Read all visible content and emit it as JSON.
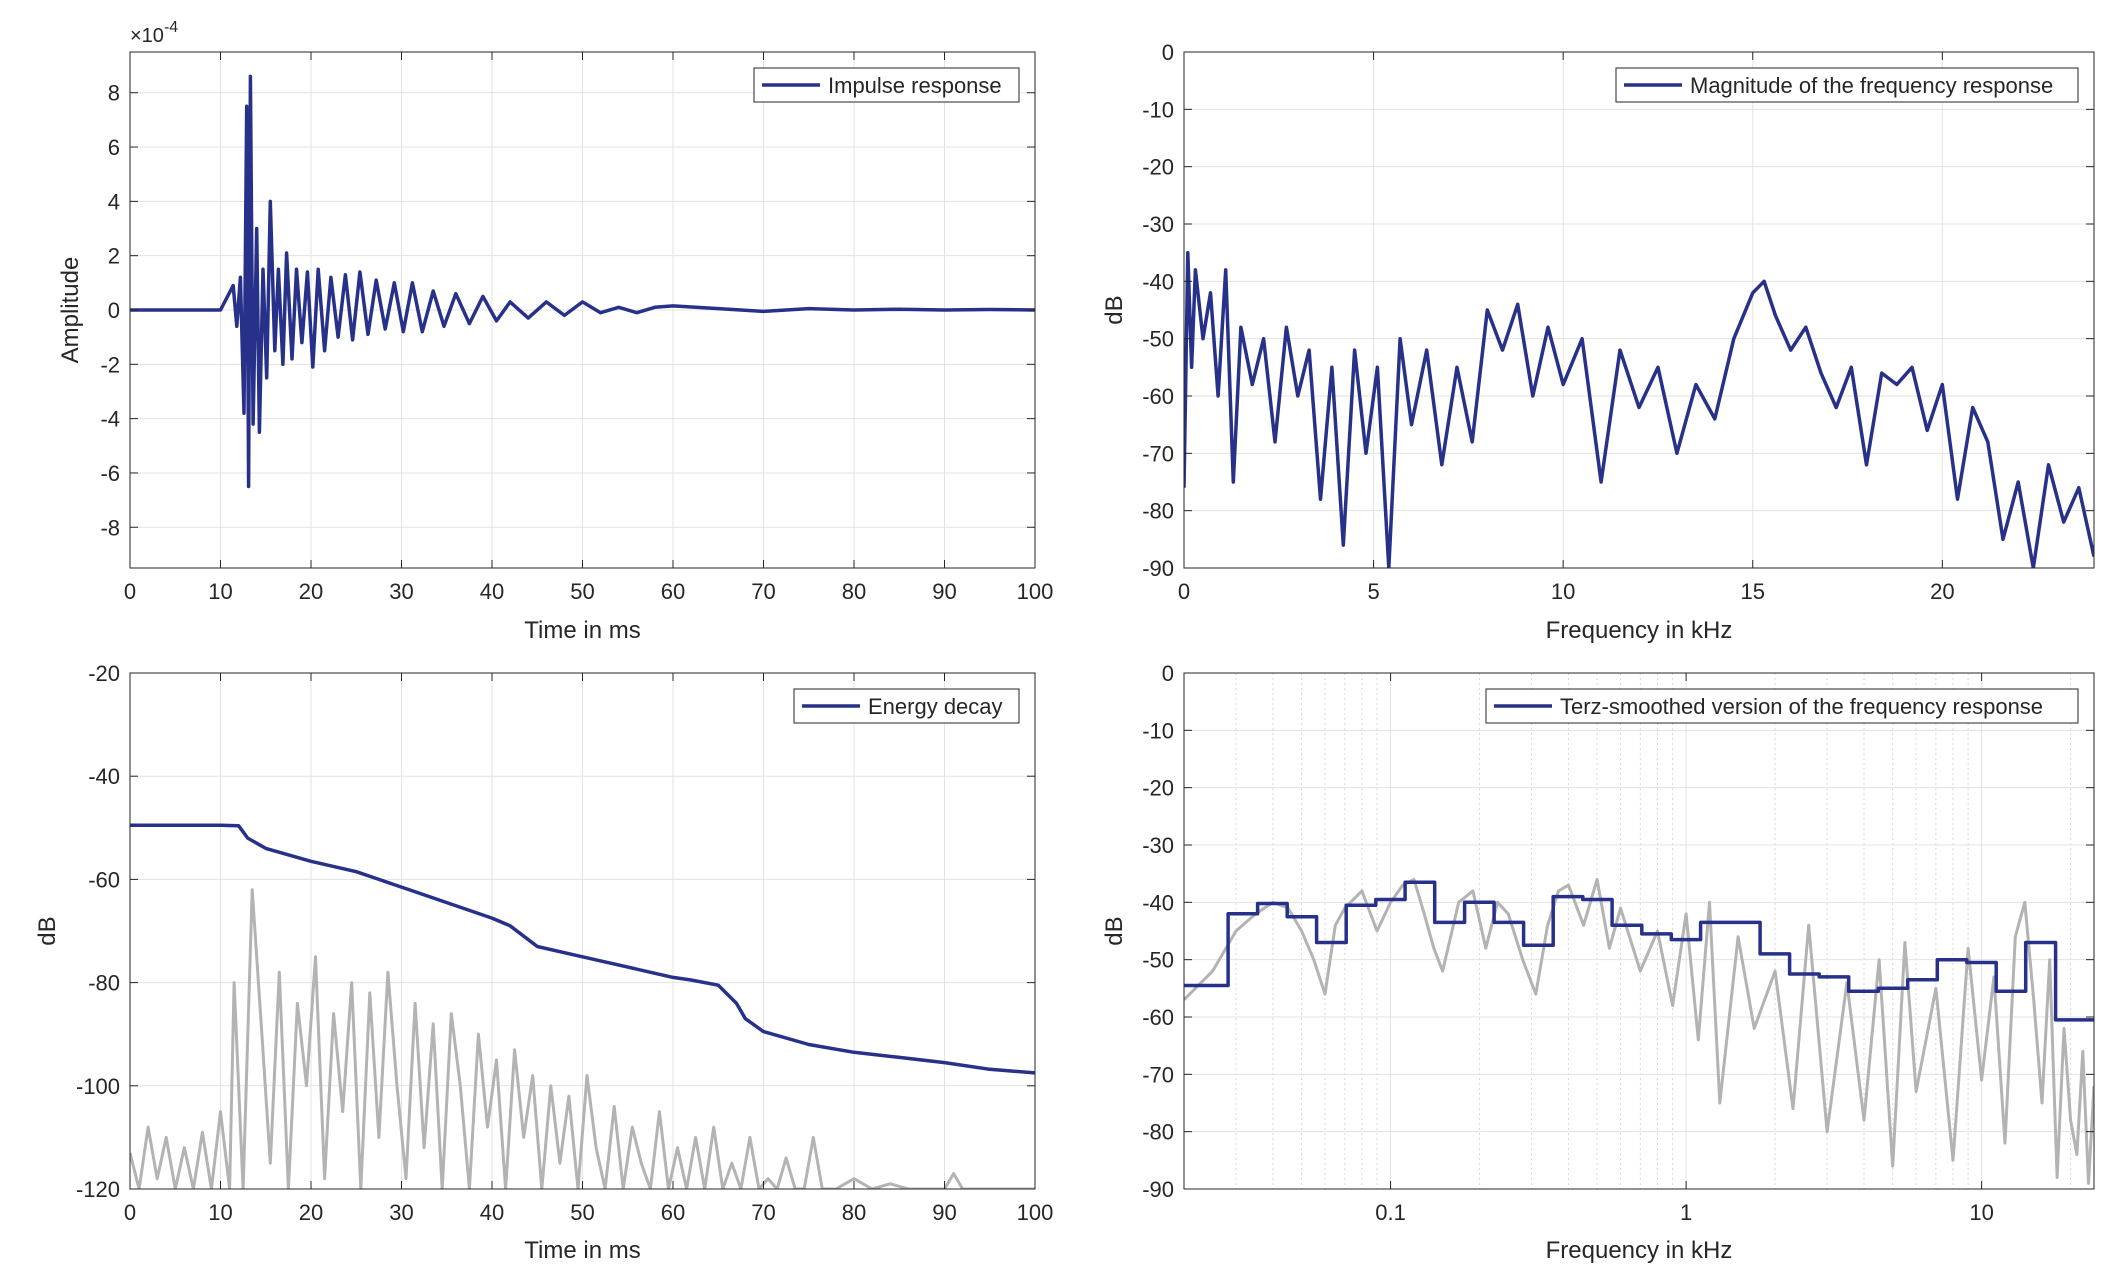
{
  "colors": {
    "series": "#27318a",
    "secondary": "#b3b3b3",
    "grid": "#e3e3e3",
    "axis": "#262626",
    "background": "#ffffff"
  },
  "chart_data": [
    {
      "type": "line",
      "y_exponent_label": "×10",
      "y_exponent_power": "-4",
      "xlabel": "Time in ms",
      "ylabel": "Amplitude",
      "xlim": [
        0,
        100
      ],
      "ylim": [
        -9.5,
        9.5
      ],
      "xticks": [
        0,
        10,
        20,
        30,
        40,
        50,
        60,
        70,
        80,
        90,
        100
      ],
      "yticks": [
        -8,
        -6,
        -4,
        -2,
        0,
        2,
        4,
        6,
        8
      ],
      "grid": true,
      "legend_position": "top-right",
      "series": [
        {
          "name": "Impulse response",
          "x": [
            0,
            5,
            10,
            11.4,
            11.8,
            12.2,
            12.6,
            12.9,
            13.1,
            13.3,
            13.6,
            14.0,
            14.3,
            14.7,
            15.1,
            15.5,
            16.0,
            16.4,
            16.9,
            17.3,
            17.9,
            18.4,
            19.0,
            19.6,
            20.2,
            20.8,
            21.5,
            22.2,
            23.0,
            23.8,
            24.6,
            25.4,
            26.3,
            27.2,
            28.2,
            29.2,
            30.2,
            31.2,
            32.3,
            33.5,
            34.7,
            36,
            37.5,
            39,
            40.5,
            42,
            44,
            46,
            48,
            50,
            52,
            54,
            56,
            58,
            60,
            65,
            70,
            75,
            80,
            85,
            90,
            95,
            100
          ],
          "values": [
            0,
            0,
            0,
            0.9,
            -0.6,
            1.2,
            -3.8,
            7.5,
            -6.5,
            8.6,
            -4.2,
            3.0,
            -4.5,
            1.5,
            -2.5,
            4.0,
            -1.5,
            1.5,
            -2.0,
            2.1,
            -1.8,
            1.5,
            -1.2,
            1.4,
            -2.1,
            1.5,
            -1.5,
            1.2,
            -1.0,
            1.3,
            -1.1,
            1.4,
            -0.9,
            1.1,
            -0.7,
            1.0,
            -0.8,
            1.0,
            -0.8,
            0.7,
            -0.6,
            0.6,
            -0.5,
            0.5,
            -0.4,
            0.3,
            -0.3,
            0.3,
            -0.2,
            0.3,
            -0.1,
            0.1,
            -0.1,
            0.1,
            0.15,
            0.05,
            -0.05,
            0.05,
            0,
            0.03,
            0,
            0.02,
            0
          ]
        }
      ]
    },
    {
      "type": "line",
      "xlabel": "Frequency in kHz",
      "ylabel": "dB",
      "xlim": [
        0,
        24
      ],
      "ylim": [
        -90,
        0
      ],
      "xticks": [
        0,
        5,
        10,
        15,
        20
      ],
      "yticks": [
        0,
        -10,
        -20,
        -30,
        -40,
        -50,
        -60,
        -70,
        -80,
        -90
      ],
      "grid": true,
      "legend_position": "top-right",
      "series": [
        {
          "name": "Magnitude of the frequency response",
          "x": [
            0,
            0.1,
            0.2,
            0.3,
            0.5,
            0.7,
            0.9,
            1.1,
            1.3,
            1.5,
            1.8,
            2.1,
            2.4,
            2.7,
            3.0,
            3.3,
            3.6,
            3.9,
            4.2,
            4.5,
            4.8,
            5.1,
            5.4,
            5.7,
            6.0,
            6.4,
            6.8,
            7.2,
            7.6,
            8.0,
            8.4,
            8.8,
            9.2,
            9.6,
            10.0,
            10.5,
            11.0,
            11.5,
            12.0,
            12.5,
            13.0,
            13.5,
            14.0,
            14.5,
            15.0,
            15.3,
            15.6,
            16.0,
            16.4,
            16.8,
            17.2,
            17.6,
            18.0,
            18.4,
            18.8,
            19.2,
            19.6,
            20.0,
            20.4,
            20.8,
            21.2,
            21.6,
            22.0,
            22.4,
            22.8,
            23.2,
            23.6,
            24.0
          ],
          "values": [
            -76,
            -35,
            -55,
            -38,
            -50,
            -42,
            -60,
            -38,
            -75,
            -48,
            -58,
            -50,
            -68,
            -48,
            -60,
            -52,
            -78,
            -55,
            -86,
            -52,
            -70,
            -55,
            -90,
            -50,
            -65,
            -52,
            -72,
            -55,
            -68,
            -45,
            -52,
            -44,
            -60,
            -48,
            -58,
            -50,
            -75,
            -52,
            -62,
            -55,
            -70,
            -58,
            -64,
            -50,
            -42,
            -40,
            -46,
            -52,
            -48,
            -56,
            -62,
            -55,
            -72,
            -56,
            -58,
            -55,
            -66,
            -58,
            -78,
            -62,
            -68,
            -85,
            -75,
            -90,
            -72,
            -82,
            -76,
            -88
          ]
        }
      ]
    },
    {
      "type": "line",
      "xlabel": "Time in ms",
      "ylabel": "dB",
      "xlim": [
        0,
        100
      ],
      "ylim": [
        -120,
        -20
      ],
      "xticks": [
        0,
        10,
        20,
        30,
        40,
        50,
        60,
        70,
        80,
        90,
        100
      ],
      "yticks": [
        -20,
        -40,
        -60,
        -80,
        -100,
        -120
      ],
      "grid": true,
      "legend_position": "top-right",
      "series": [
        {
          "name": "Energy decay",
          "x": [
            0,
            5,
            10,
            12,
            13,
            15,
            20,
            25,
            30,
            35,
            40,
            42,
            45,
            50,
            55,
            60,
            62,
            65,
            67,
            68,
            70,
            75,
            80,
            85,
            90,
            95,
            100
          ],
          "values": [
            -49.5,
            -49.5,
            -49.5,
            -49.6,
            -52,
            -54,
            -56.5,
            -58.5,
            -61.5,
            -64.5,
            -67.5,
            -69,
            -73,
            -75,
            -77,
            -79,
            -79.5,
            -80.5,
            -84,
            -87,
            -89.5,
            -92,
            -93.5,
            -94.5,
            -95.5,
            -96.8,
            -97.5
          ]
        },
        {
          "x": [
            0,
            1,
            2,
            3,
            4,
            5,
            6,
            7,
            8,
            9,
            10,
            11,
            11.5,
            12.5,
            13.5,
            14.5,
            15.5,
            16.5,
            17.5,
            18.5,
            19.5,
            20.5,
            21.5,
            22.5,
            23.5,
            24.5,
            25.5,
            26.5,
            27.5,
            28.5,
            29.5,
            30.5,
            31.5,
            32.5,
            33.5,
            34.5,
            35.5,
            36.5,
            37.5,
            38.5,
            39.5,
            40.5,
            41.5,
            42.5,
            43.5,
            44.5,
            45.5,
            46.5,
            47.5,
            48.5,
            49.5,
            50.5,
            51.5,
            52.5,
            53.5,
            54.5,
            55.5,
            56.5,
            57.5,
            58.5,
            59.5,
            60.5,
            61.5,
            62.5,
            63.5,
            64.5,
            65.5,
            66.5,
            67.5,
            68.5,
            69.5,
            70.5,
            71.5,
            72.5,
            73.5,
            74.5,
            75.5,
            76.5,
            78,
            80,
            82,
            84,
            86,
            88,
            90,
            91,
            92,
            94,
            96,
            98,
            100
          ],
          "values": [
            -113,
            -120,
            -108,
            -118,
            -110,
            -120,
            -112,
            -120,
            -109,
            -120,
            -105,
            -120,
            -80,
            -120,
            -62,
            -88,
            -115,
            -78,
            -120,
            -84,
            -100,
            -75,
            -118,
            -86,
            -105,
            -80,
            -120,
            -82,
            -110,
            -78,
            -100,
            -118,
            -84,
            -112,
            -88,
            -120,
            -86,
            -100,
            -120,
            -90,
            -108,
            -95,
            -120,
            -93,
            -110,
            -98,
            -120,
            -100,
            -115,
            -102,
            -120,
            -98,
            -112,
            -120,
            -104,
            -120,
            -108,
            -115,
            -120,
            -105,
            -120,
            -112,
            -120,
            -110,
            -120,
            -108,
            -120,
            -115,
            -120,
            -110,
            -120,
            -118,
            -120,
            -114,
            -120,
            -120,
            -110,
            -120,
            -120,
            -118,
            -120,
            -119,
            -120,
            -120,
            -120,
            -117,
            -120,
            -120,
            -120,
            -120,
            -120
          ]
        }
      ]
    },
    {
      "type": "line",
      "xlabel": "Frequency in kHz",
      "ylabel": "dB",
      "xscale": "log",
      "xlim": [
        0.02,
        24
      ],
      "ylim": [
        -90,
        0
      ],
      "xticks": [
        0.1,
        1,
        10
      ],
      "xticklabels": [
        "0.1",
        "1",
        "10"
      ],
      "yticks": [
        0,
        -10,
        -20,
        -30,
        -40,
        -50,
        -60,
        -70,
        -80,
        -90
      ],
      "grid": true,
      "legend_position": "top-right",
      "series": [
        {
          "name": "Terz-smoothed version of the frequency response",
          "step": true,
          "x": [
            0.02,
            0.0282,
            0.0355,
            0.0447,
            0.0562,
            0.0708,
            0.0891,
            0.112,
            0.141,
            0.178,
            0.224,
            0.282,
            0.355,
            0.447,
            0.562,
            0.708,
            0.891,
            1.12,
            1.41,
            1.78,
            2.24,
            2.82,
            3.55,
            4.47,
            5.62,
            7.08,
            8.91,
            11.2,
            14.1,
            17.8,
            24
          ],
          "values": [
            -54.5,
            -42,
            -40.2,
            -42.5,
            -47,
            -40.5,
            -39.5,
            -36.5,
            -43.5,
            -40,
            -43.5,
            -47.5,
            -39,
            -39.5,
            -44,
            -45.5,
            -46.5,
            -43.5,
            -43.5,
            -49,
            -52.5,
            -53,
            -55.5,
            -55,
            -53.5,
            -50,
            -50.5,
            -55.5,
            -47,
            -60.5,
            -60.5
          ]
        },
        {
          "x": [
            0.02,
            0.025,
            0.03,
            0.035,
            0.04,
            0.045,
            0.05,
            0.055,
            0.06,
            0.065,
            0.07,
            0.08,
            0.09,
            0.1,
            0.11,
            0.12,
            0.13,
            0.14,
            0.15,
            0.17,
            0.19,
            0.21,
            0.23,
            0.25,
            0.28,
            0.31,
            0.34,
            0.37,
            0.4,
            0.45,
            0.5,
            0.55,
            0.6,
            0.7,
            0.8,
            0.9,
            1.0,
            1.1,
            1.2,
            1.3,
            1.5,
            1.7,
            2.0,
            2.3,
            2.6,
            3.0,
            3.5,
            4.0,
            4.5,
            5.0,
            5.5,
            6.0,
            7.0,
            8.0,
            9.0,
            10,
            11,
            12,
            13,
            14,
            15,
            16,
            17,
            18,
            19,
            20,
            21,
            22,
            23,
            24
          ],
          "values": [
            -57,
            -52,
            -45,
            -42,
            -40,
            -41,
            -45,
            -50,
            -56,
            -44,
            -41,
            -38,
            -45,
            -40,
            -37,
            -36,
            -42,
            -48,
            -52,
            -40,
            -38,
            -48,
            -40,
            -42,
            -50,
            -56,
            -44,
            -38,
            -37,
            -44,
            -36,
            -48,
            -41,
            -52,
            -45,
            -58,
            -42,
            -64,
            -40,
            -75,
            -46,
            -62,
            -52,
            -76,
            -44,
            -80,
            -54,
            -78,
            -50,
            -86,
            -47,
            -73,
            -55,
            -85,
            -48,
            -71,
            -53,
            -82,
            -46,
            -40,
            -57,
            -75,
            -50,
            -88,
            -62,
            -78,
            -84,
            -66,
            -89,
            -72
          ]
        }
      ]
    }
  ]
}
